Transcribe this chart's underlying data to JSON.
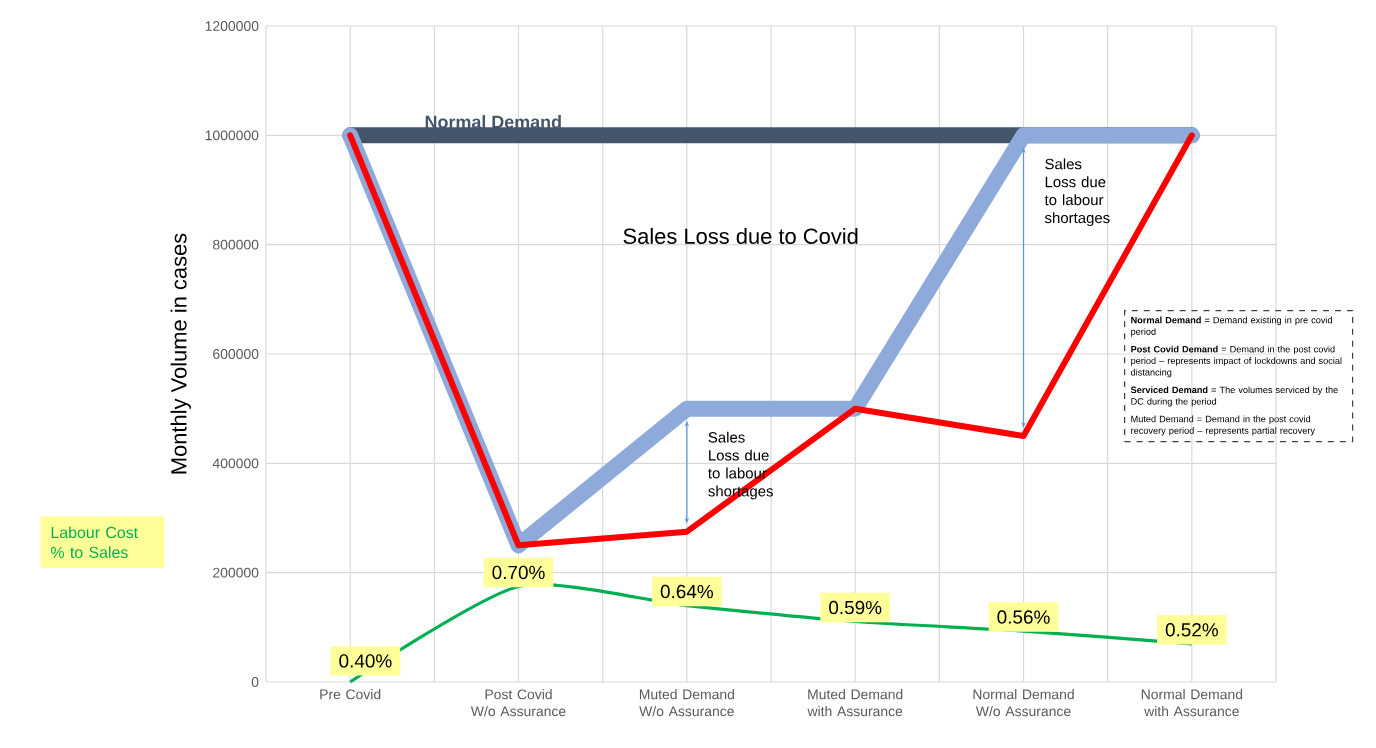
{
  "chart_data": {
    "type": "line",
    "ylabel": "Monthly Volume in cases",
    "categories": [
      "Pre Covid",
      "Post Covid W/o Assurance",
      "Muted Demand W/o Assurance",
      "Muted Demand with Assurance",
      "Normal Demand W/o Assurance",
      "Normal Demand with Assurance"
    ],
    "series": [
      {
        "name": "Normal Demand",
        "color": "#44546a",
        "values": [
          1000000,
          1000000,
          1000000,
          1000000,
          1000000,
          1000000
        ]
      },
      {
        "color": "#8eaadb",
        "values": [
          1000000,
          250000,
          500000,
          500000,
          1000000,
          1000000
        ]
      },
      {
        "color": "#ff0000",
        "values": [
          1000000,
          250000,
          275000,
          500000,
          450000,
          1000000
        ]
      },
      {
        "name": "Labour Cost % to Sales",
        "color": "#00b050",
        "axis": "y2",
        "values": [
          0.4,
          0.7,
          0.64,
          0.59,
          0.56,
          0.52
        ],
        "value_labels": [
          "0.40%",
          "0.70%",
          "0.64%",
          "0.59%",
          "0.56%",
          "0.52%"
        ]
      }
    ],
    "ylim": [
      0,
      1200000
    ],
    "yticks": [
      0,
      200000,
      400000,
      600000,
      800000,
      1000000,
      1200000
    ],
    "y2lim": [
      0.4,
      2.46
    ],
    "grid": true,
    "annotations": [
      "Sales Loss due to Covid",
      "Sales Loss due to labour shortages",
      "Sales Loss due to labour shortages",
      "**Normal Demand** = Demand existing in pre covid period",
      "**Post Covid Demand** = Demand in the post covid period – represents impact of lockdowns and social distancing",
      "**Serviced Demand** = The volumes serviced by the DC during the period",
      "Muted Demand = Demand in the post covid recovery period – represents partial recovery"
    ]
  }
}
